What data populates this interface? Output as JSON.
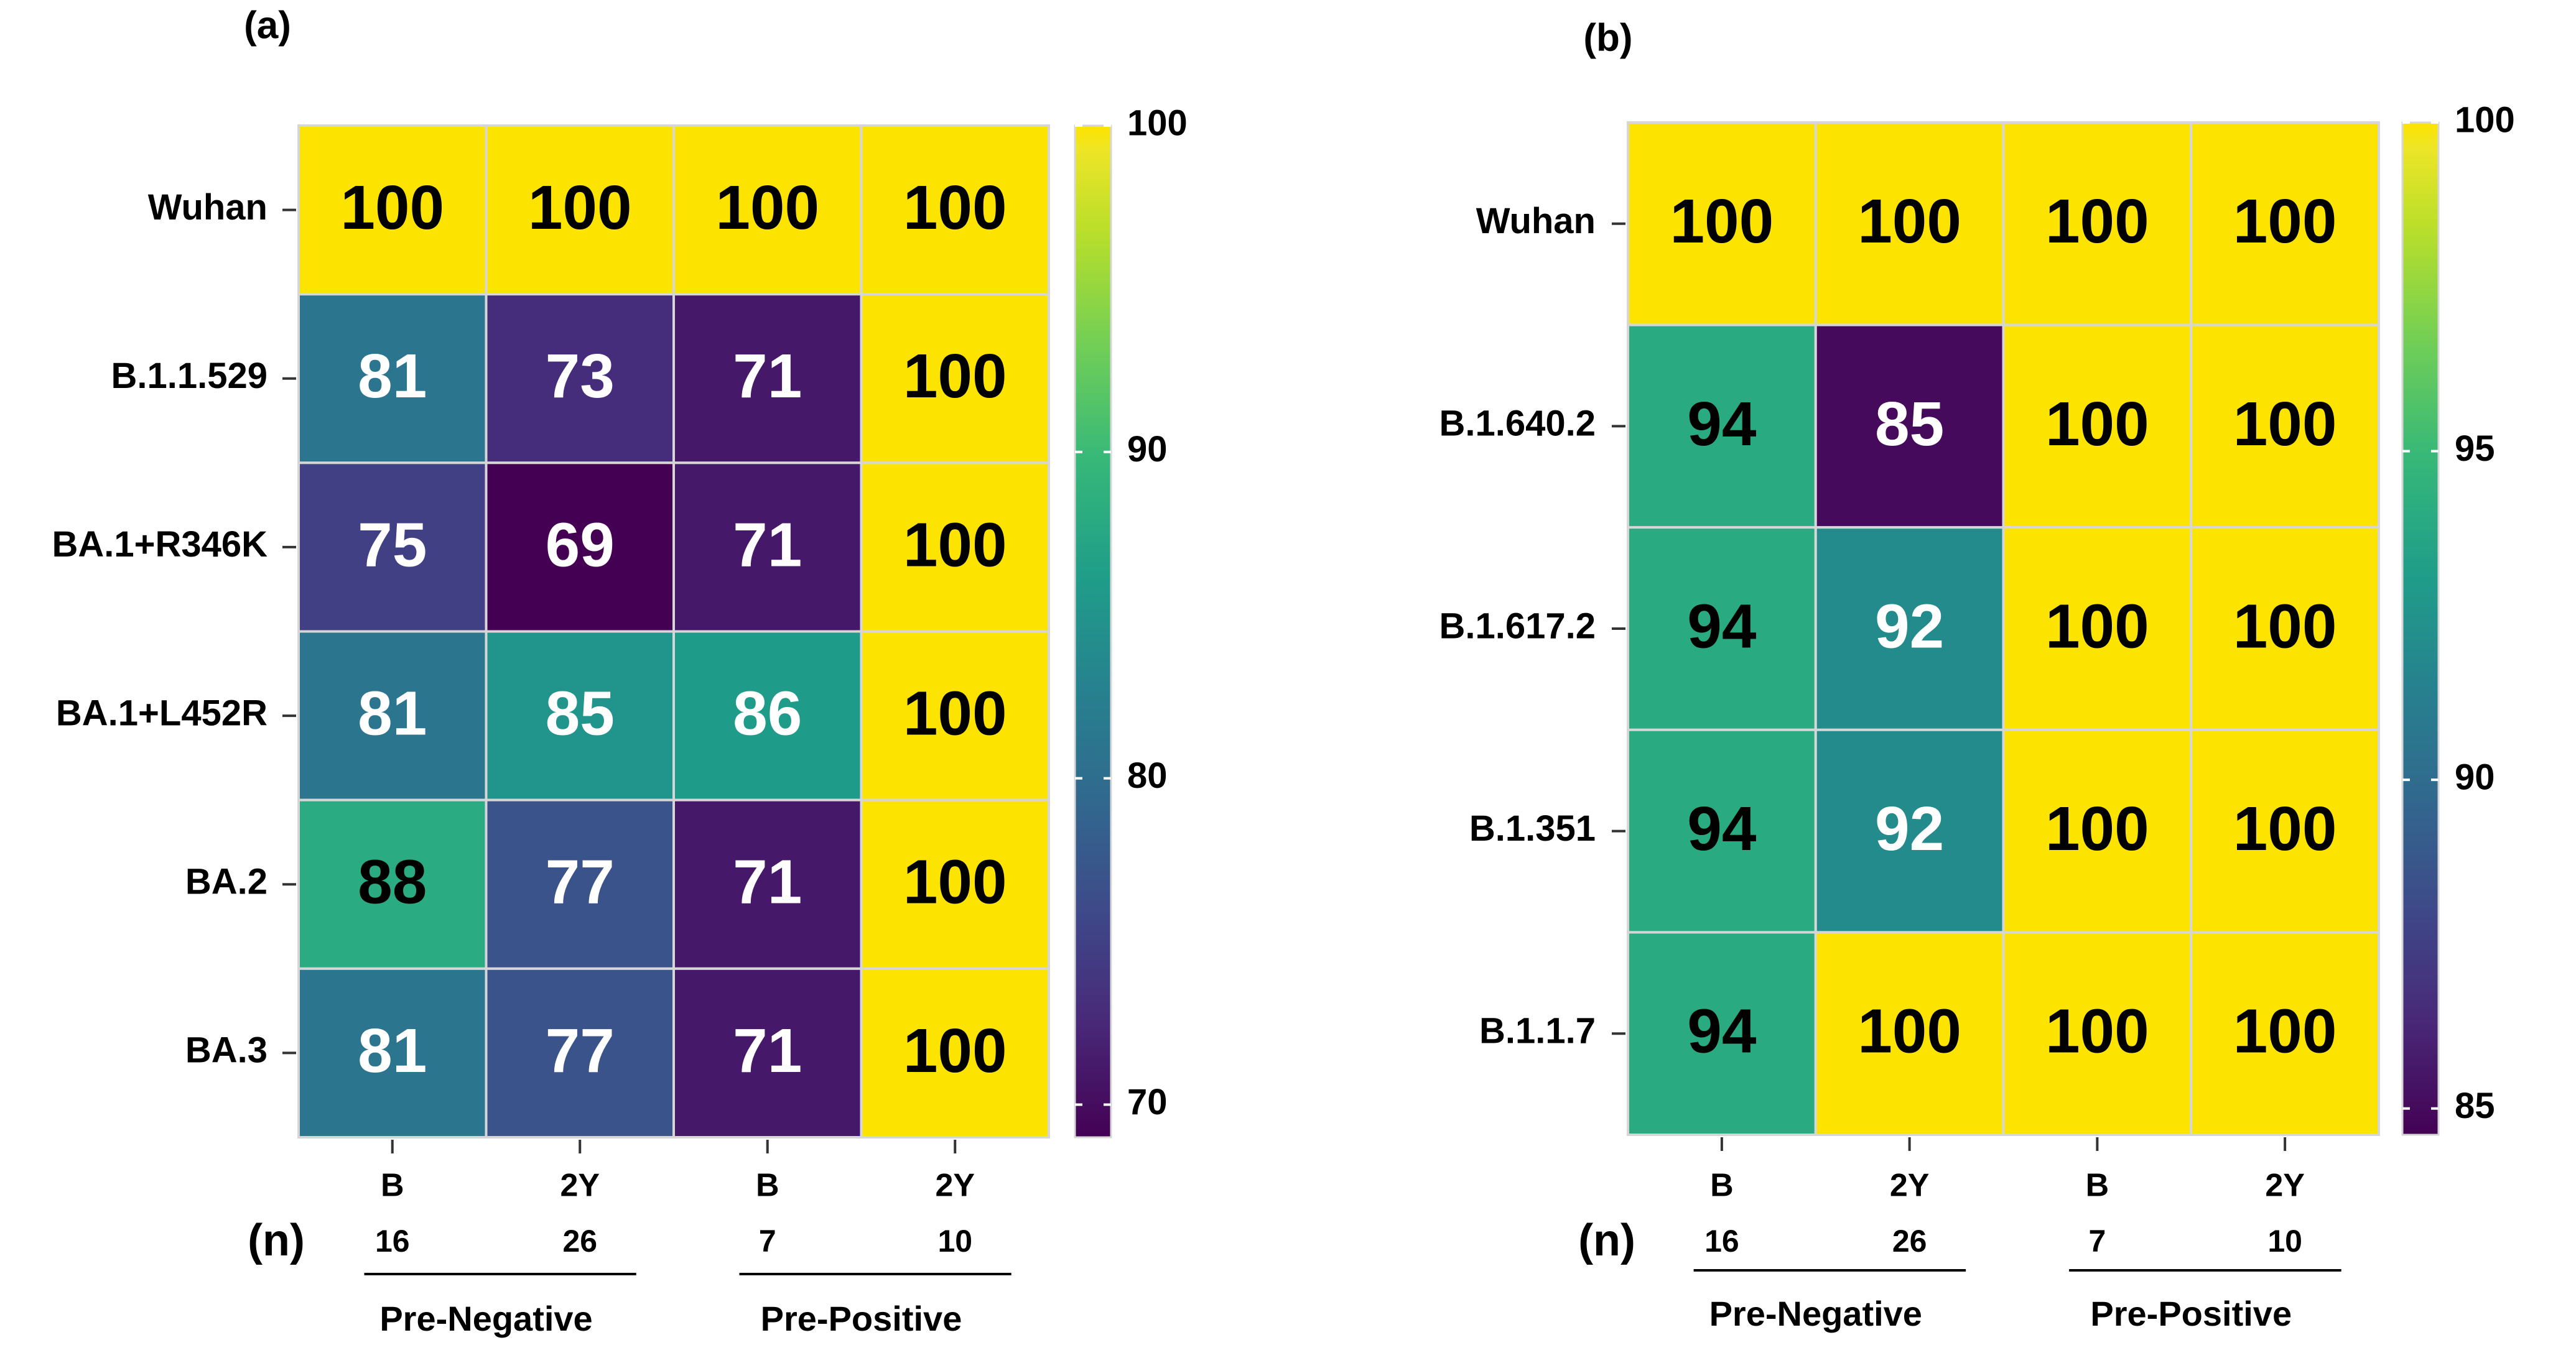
{
  "chart_data": [
    {
      "type": "heatmap",
      "panel_label": "(a)",
      "rows": [
        "Wuhan",
        "B.1.1.529",
        "BA.1+R346K",
        "BA.1+L452R",
        "BA.2",
        "BA.3"
      ],
      "columns": [
        "B",
        "2Y",
        "B",
        "2Y"
      ],
      "n_label": "(n)",
      "n_values": [
        "16",
        "26",
        "7",
        "10"
      ],
      "groups": [
        "Pre-Negative",
        "Pre-Positive"
      ],
      "values": [
        [
          100,
          100,
          100,
          100
        ],
        [
          81,
          73,
          71,
          100
        ],
        [
          75,
          69,
          71,
          100
        ],
        [
          81,
          85,
          86,
          100
        ],
        [
          88,
          77,
          71,
          100
        ],
        [
          81,
          77,
          71,
          100
        ]
      ],
      "color_scale": {
        "min": 69,
        "max": 100,
        "ticks": [
          {
            "value": 100,
            "label": "100"
          },
          {
            "value": 90,
            "label": "90"
          },
          {
            "value": 80,
            "label": "80"
          },
          {
            "value": 70,
            "label": "70"
          }
        ]
      }
    },
    {
      "type": "heatmap",
      "panel_label": "(b)",
      "rows": [
        "Wuhan",
        "B.1.640.2",
        "B.1.617.2",
        "B.1.351",
        "B.1.1.7"
      ],
      "columns": [
        "B",
        "2Y",
        "B",
        "2Y"
      ],
      "n_label": "(n)",
      "n_values": [
        "16",
        "26",
        "7",
        "10"
      ],
      "groups": [
        "Pre-Negative",
        "Pre-Positive"
      ],
      "values": [
        [
          100,
          100,
          100,
          100
        ],
        [
          94,
          85,
          100,
          100
        ],
        [
          94,
          92,
          100,
          100
        ],
        [
          94,
          92,
          100,
          100
        ],
        [
          94,
          100,
          100,
          100
        ]
      ],
      "color_scale": {
        "min": 84.6,
        "max": 100,
        "ticks": [
          {
            "value": 100,
            "label": "100"
          },
          {
            "value": 95,
            "label": "95"
          },
          {
            "value": 90,
            "label": "90"
          },
          {
            "value": 85,
            "label": "85"
          }
        ]
      }
    }
  ],
  "colors": {
    "viridis": [
      "#440154",
      "#482878",
      "#3e4989",
      "#31688e",
      "#26828e",
      "#1f9e89",
      "#35b779",
      "#6ece58",
      "#b5de2b",
      "#fde725"
    ],
    "top_yellow": "#fde400",
    "grid_line": "#d6d6d6",
    "text_dark": "#000000",
    "text_light": "#ffffff"
  }
}
